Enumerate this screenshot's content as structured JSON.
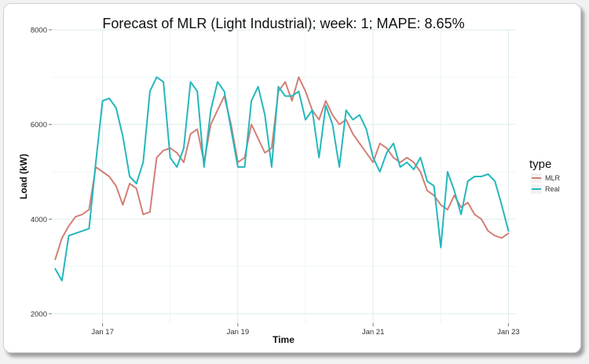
{
  "chart_data": {
    "type": "line",
    "title": "Forecast of MLR (Light Industrial); week: 1; MAPE: 8.65%",
    "xlabel": "Time",
    "ylabel": "Load (kW)",
    "ylim": [
      1800,
      8000
    ],
    "xlim": [
      16.25,
      23.1
    ],
    "y_ticks": [
      "2000",
      "4000",
      "6000",
      "8000"
    ],
    "x_ticks": [
      "Jan 17",
      "Jan 19",
      "Jan 21",
      "Jan 23"
    ],
    "grid": true,
    "legend": {
      "title": "type",
      "position": "right"
    },
    "colors": {
      "MLR": "#d27f76",
      "Real": "#25b7bd"
    },
    "series": [
      {
        "name": "MLR",
        "x": [
          16.3,
          16.4,
          16.5,
          16.6,
          16.7,
          16.8,
          16.9,
          17.0,
          17.1,
          17.2,
          17.3,
          17.4,
          17.5,
          17.6,
          17.7,
          17.8,
          17.9,
          18.0,
          18.1,
          18.2,
          18.3,
          18.4,
          18.5,
          18.6,
          18.7,
          18.8,
          18.9,
          19.0,
          19.1,
          19.2,
          19.3,
          19.4,
          19.5,
          19.6,
          19.7,
          19.8,
          19.9,
          20.0,
          20.1,
          20.2,
          20.3,
          20.4,
          20.5,
          20.6,
          20.7,
          20.8,
          20.9,
          21.0,
          21.1,
          21.2,
          21.3,
          21.4,
          21.5,
          21.6,
          21.7,
          21.8,
          21.9,
          22.0,
          22.1,
          22.2,
          22.3,
          22.4,
          22.5,
          22.6,
          22.7,
          22.8,
          22.9,
          23.0
        ],
        "values": [
          3150,
          3600,
          3850,
          4050,
          4100,
          4200,
          5100,
          5000,
          4900,
          4700,
          4300,
          4750,
          4650,
          4100,
          4150,
          5300,
          5450,
          5500,
          5400,
          5200,
          5800,
          5900,
          5200,
          6000,
          6300,
          6600,
          6000,
          5200,
          5300,
          6000,
          5700,
          5400,
          5500,
          6700,
          6900,
          6500,
          7000,
          6700,
          6300,
          6100,
          6500,
          6200,
          6000,
          6100,
          5800,
          5600,
          5400,
          5200,
          5600,
          5500,
          5300,
          5200,
          5300,
          5200,
          5000,
          4600,
          4500,
          4300,
          4200,
          4500,
          4250,
          4350,
          4100,
          4000,
          3750,
          3650,
          3600,
          3700
        ]
      },
      {
        "name": "Real",
        "x": [
          16.3,
          16.4,
          16.5,
          16.6,
          16.7,
          16.8,
          16.9,
          17.0,
          17.1,
          17.2,
          17.3,
          17.4,
          17.5,
          17.6,
          17.7,
          17.8,
          17.9,
          18.0,
          18.1,
          18.2,
          18.3,
          18.4,
          18.5,
          18.6,
          18.7,
          18.8,
          18.9,
          19.0,
          19.1,
          19.2,
          19.3,
          19.4,
          19.5,
          19.6,
          19.7,
          19.8,
          19.9,
          20.0,
          20.1,
          20.2,
          20.3,
          20.4,
          20.5,
          20.6,
          20.7,
          20.8,
          20.9,
          21.0,
          21.1,
          21.2,
          21.3,
          21.4,
          21.5,
          21.6,
          21.7,
          21.8,
          21.9,
          22.0,
          22.1,
          22.2,
          22.3,
          22.4,
          22.5,
          22.6,
          22.7,
          22.8,
          22.9,
          23.0
        ],
        "values": [
          2950,
          2700,
          3650,
          3700,
          3750,
          3800,
          5200,
          6500,
          6550,
          6350,
          5750,
          4900,
          4750,
          5200,
          6700,
          7000,
          6900,
          5300,
          5100,
          5500,
          6900,
          6700,
          5100,
          6300,
          6900,
          6700,
          5900,
          5100,
          5100,
          6500,
          6800,
          6200,
          5100,
          6800,
          6600,
          6600,
          6700,
          6100,
          6300,
          5300,
          6400,
          6000,
          5100,
          6300,
          6100,
          6200,
          5900,
          5300,
          5000,
          5400,
          5600,
          5100,
          5200,
          5050,
          5300,
          4800,
          4700,
          3400,
          5000,
          4600,
          4100,
          4800,
          4900,
          4900,
          4950,
          4800,
          4300,
          3750
        ]
      }
    ]
  }
}
